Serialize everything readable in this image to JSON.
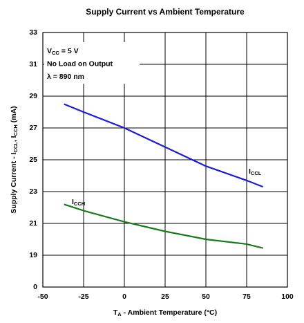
{
  "chart_data": {
    "type": "line",
    "title": "Supply Current vs Ambient Temperature",
    "x_label": [
      "T",
      "A",
      " - Ambient Temperature (°C)"
    ],
    "y_label": [
      "Supply Current - I",
      "CCL",
      ", I",
      "CCH",
      " (mA)"
    ],
    "annotations": [
      [
        "V",
        "CC",
        " = 5 V"
      ],
      [
        "No Load on Output"
      ],
      [
        "λ = 890 nm"
      ]
    ],
    "xlim": [
      -50,
      100
    ],
    "xticks": [
      -50,
      -25,
      0,
      25,
      50,
      75,
      100
    ],
    "ylim": [
      0,
      33
    ],
    "yticks": [
      0,
      19,
      21,
      23,
      25,
      27,
      29,
      31,
      33
    ],
    "grid": true,
    "x": [
      -37,
      -25,
      0,
      25,
      50,
      75,
      85
    ],
    "series": [
      {
        "name": "ICCL",
        "color": "#1a1adc",
        "values": [
          28.5,
          28.0,
          27.0,
          25.8,
          24.6,
          23.7,
          23.3
        ]
      },
      {
        "name": "ICCH",
        "color": "#1a7a1a",
        "values": [
          22.2,
          21.8,
          21.1,
          20.5,
          20.0,
          19.7,
          19.45
        ]
      }
    ]
  }
}
